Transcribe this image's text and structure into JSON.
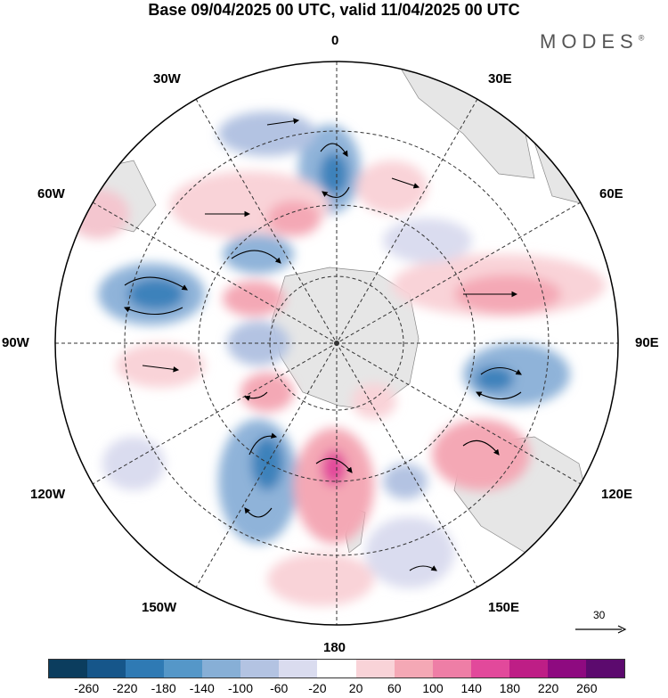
{
  "title": "Base 09/04/2025 00 UTC, valid 11/04/2025 00 UTC",
  "brand": "MODES",
  "brand_mark": "®",
  "longitude_labels": {
    "lon_0": "0",
    "lon_30e": "30E",
    "lon_60e": "60E",
    "lon_90e": "90E",
    "lon_120e": "120E",
    "lon_150e": "150E",
    "lon_180": "180",
    "lon_150w": "150W",
    "lon_120w": "120W",
    "lon_90w": "90W",
    "lon_60w": "60W",
    "lon_30w": "30W"
  },
  "reference_vector": {
    "label": "30"
  },
  "colorbar": {
    "colors": [
      "#0b3d5e",
      "#16568a",
      "#2f7ab4",
      "#5597c8",
      "#87afd6",
      "#b3c3e2",
      "#dadcef",
      "#ffffff",
      "#f9d3d8",
      "#f4a8b5",
      "#ee7ea6",
      "#e2499b",
      "#be1e86",
      "#8e0a80",
      "#5c0a6e"
    ],
    "tick_labels": [
      "-260",
      "-220",
      "-180",
      "-140",
      "-100",
      "-60",
      "-20",
      "20",
      "60",
      "100",
      "140",
      "180",
      "220",
      "260"
    ]
  },
  "map": {
    "projection": "south-polar-stereographic",
    "field_colors": {
      "negative_strong": "#3d82bb",
      "negative_mid": "#8fb3d9",
      "negative_weak": "#dadcef",
      "positive_weak": "#f9d3d8",
      "positive_mid": "#f4a8b5",
      "positive_strong": "#e2499b",
      "land": "#e8e8e8"
    }
  }
}
